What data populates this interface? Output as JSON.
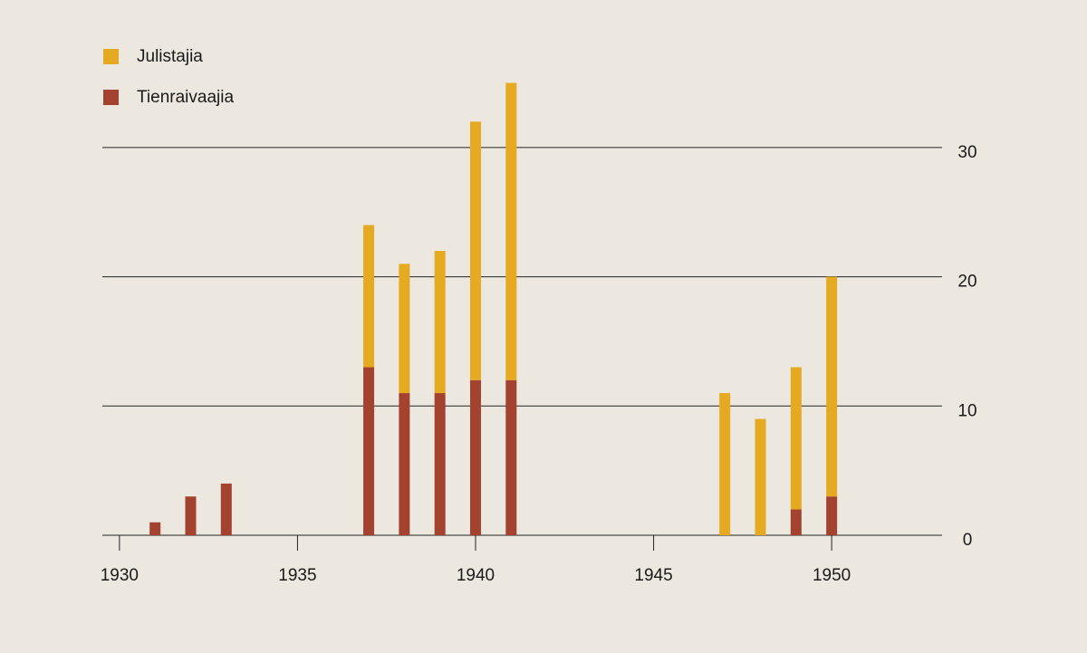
{
  "chart_data": {
    "type": "stacked-bar",
    "x": [
      1931,
      1932,
      1933,
      1937,
      1938,
      1939,
      1940,
      1941,
      1947,
      1948,
      1949,
      1950
    ],
    "series": [
      {
        "name": "Tienraivaajia",
        "color": "#a3432f",
        "values": [
          1,
          3,
          4,
          13,
          11,
          11,
          12,
          12,
          0,
          0,
          2,
          3
        ]
      },
      {
        "name": "Julistajia",
        "color": "#e6a922",
        "values": [
          0,
          0,
          0,
          11,
          10,
          11,
          20,
          23,
          11,
          9,
          11,
          17
        ]
      }
    ],
    "xlim": [
      1929.52,
      1953.1
    ],
    "xticks": [
      1930,
      1935,
      1940,
      1945,
      1950
    ],
    "ylim": [
      0,
      35.5
    ],
    "yticks": [
      0,
      10,
      20,
      30
    ],
    "grid": true,
    "legend": "top-left"
  }
}
